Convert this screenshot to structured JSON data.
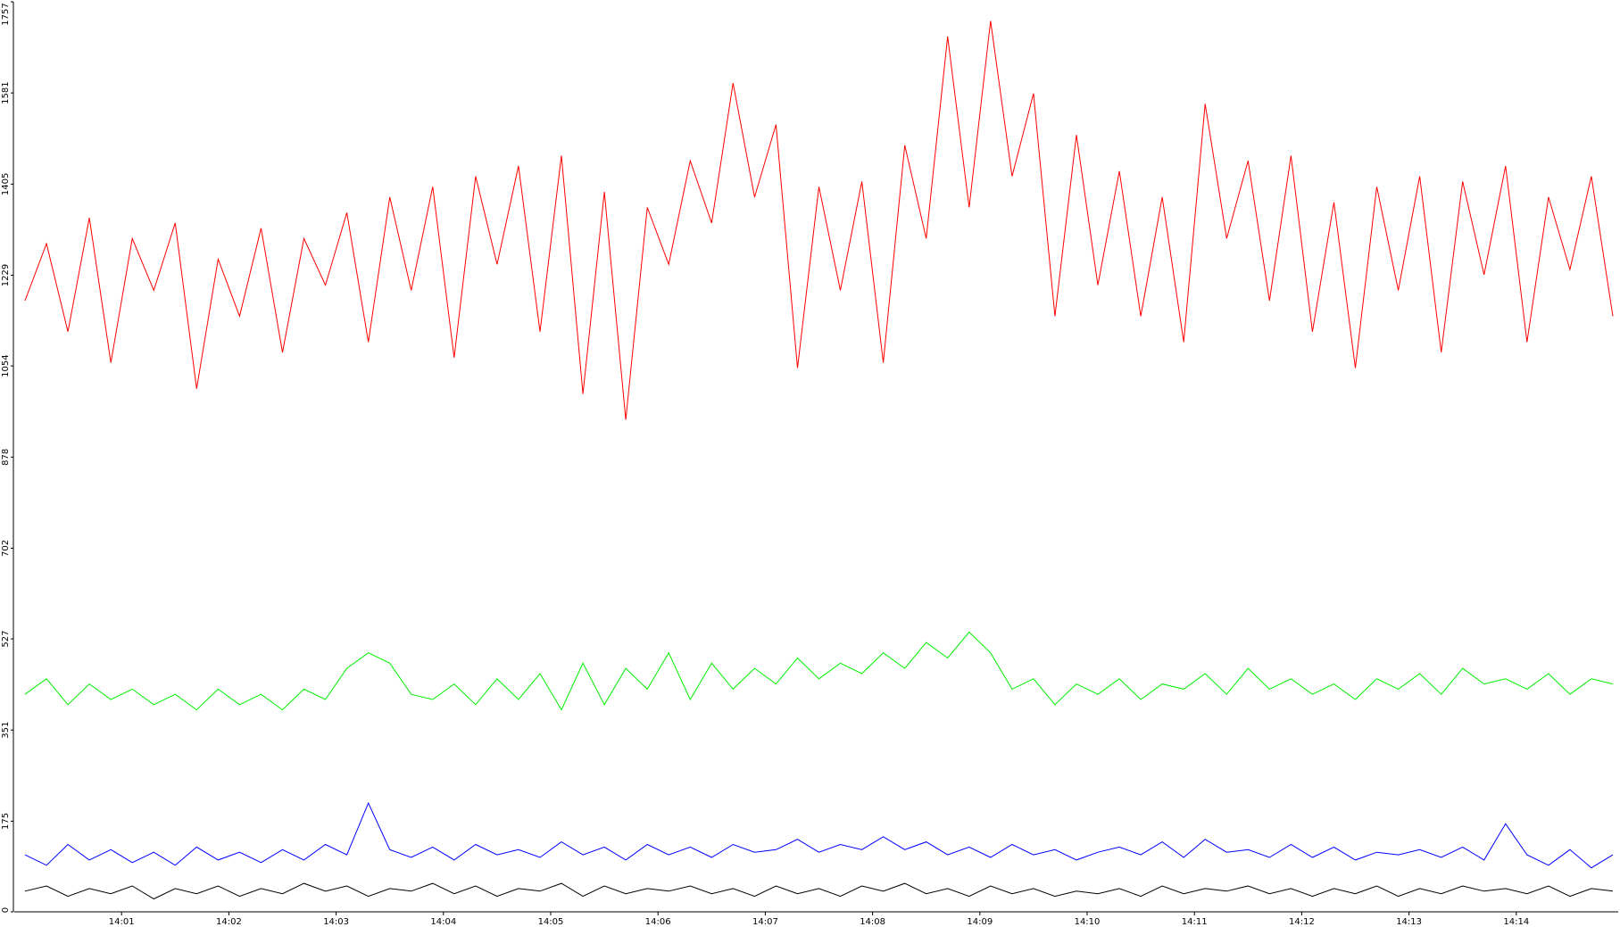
{
  "chart_data": {
    "type": "line",
    "xlim": [
      0,
      14.95
    ],
    "xticks": [
      {
        "value": 1,
        "label": "14:01"
      },
      {
        "value": 2,
        "label": "14:02"
      },
      {
        "value": 3,
        "label": "14:03"
      },
      {
        "value": 4,
        "label": "14:04"
      },
      {
        "value": 5,
        "label": "14:05"
      },
      {
        "value": 6,
        "label": "14:06"
      },
      {
        "value": 7,
        "label": "14:07"
      },
      {
        "value": 8,
        "label": "14:08"
      },
      {
        "value": 9,
        "label": "14:09"
      },
      {
        "value": 10,
        "label": "14:10"
      },
      {
        "value": 11,
        "label": "14:11"
      },
      {
        "value": 12,
        "label": "14:12"
      },
      {
        "value": 13,
        "label": "14:13"
      },
      {
        "value": 14,
        "label": "14:14"
      }
    ],
    "ylim": [
      0,
      1757
    ],
    "yticks": [
      0,
      175,
      351,
      527,
      702,
      878,
      1054,
      1229,
      1405,
      1581,
      1757
    ],
    "x": [
      0.1,
      0.3,
      0.5,
      0.7,
      0.9,
      1.1,
      1.3,
      1.5,
      1.7,
      1.9,
      2.1,
      2.3,
      2.5,
      2.7,
      2.9,
      3.1,
      3.3,
      3.5,
      3.7,
      3.9,
      4.1,
      4.3,
      4.5,
      4.7,
      4.9,
      5.1,
      5.3,
      5.5,
      5.7,
      5.9,
      6.1,
      6.3,
      6.5,
      6.7,
      6.9,
      7.1,
      7.3,
      7.5,
      7.7,
      7.9,
      8.1,
      8.3,
      8.5,
      8.7,
      8.9,
      9.1,
      9.3,
      9.5,
      9.7,
      9.9,
      10.1,
      10.3,
      10.5,
      10.7,
      10.9,
      11.1,
      11.3,
      11.5,
      11.7,
      11.9,
      12.1,
      12.3,
      12.5,
      12.7,
      12.9,
      13.1,
      13.3,
      13.5,
      13.7,
      13.9,
      14.1,
      14.3,
      14.5,
      14.7,
      14.9
    ],
    "series": [
      {
        "color": "#ff0000",
        "values": [
          1180,
          1290,
          1120,
          1340,
          1060,
          1300,
          1200,
          1330,
          1010,
          1260,
          1150,
          1320,
          1080,
          1300,
          1210,
          1350,
          1100,
          1380,
          1200,
          1400,
          1070,
          1420,
          1250,
          1440,
          1120,
          1460,
          1000,
          1390,
          950,
          1360,
          1250,
          1450,
          1330,
          1600,
          1380,
          1520,
          1050,
          1400,
          1200,
          1410,
          1060,
          1480,
          1300,
          1690,
          1360,
          1720,
          1420,
          1580,
          1150,
          1500,
          1210,
          1430,
          1150,
          1380,
          1100,
          1560,
          1300,
          1450,
          1180,
          1460,
          1120,
          1370,
          1050,
          1400,
          1200,
          1420,
          1080,
          1410,
          1230,
          1440,
          1100,
          1380,
          1240,
          1420,
          1150
        ]
      },
      {
        "color": "#00ee00",
        "values": [
          420,
          450,
          400,
          440,
          410,
          430,
          400,
          420,
          390,
          430,
          400,
          420,
          390,
          430,
          410,
          470,
          500,
          480,
          420,
          410,
          440,
          400,
          450,
          410,
          460,
          390,
          480,
          400,
          470,
          430,
          500,
          410,
          480,
          430,
          470,
          440,
          490,
          450,
          480,
          460,
          500,
          470,
          520,
          490,
          540,
          500,
          430,
          450,
          400,
          440,
          420,
          450,
          410,
          440,
          430,
          460,
          420,
          470,
          430,
          450,
          420,
          440,
          410,
          450,
          430,
          460,
          420,
          470,
          440,
          450,
          430,
          460,
          420,
          450,
          440
        ]
      },
      {
        "color": "#0000ff",
        "values": [
          110,
          90,
          130,
          100,
          120,
          95,
          115,
          90,
          125,
          100,
          115,
          95,
          120,
          100,
          130,
          110,
          210,
          120,
          105,
          125,
          100,
          130,
          110,
          120,
          105,
          135,
          110,
          125,
          100,
          130,
          110,
          125,
          105,
          130,
          115,
          120,
          140,
          115,
          130,
          120,
          145,
          120,
          135,
          110,
          125,
          105,
          130,
          110,
          120,
          100,
          115,
          125,
          110,
          135,
          105,
          140,
          115,
          120,
          105,
          130,
          105,
          125,
          100,
          115,
          110,
          120,
          105,
          125,
          100,
          170,
          110,
          90,
          120,
          85,
          110
        ]
      },
      {
        "color": "#000000",
        "values": [
          40,
          50,
          30,
          45,
          35,
          50,
          25,
          45,
          35,
          50,
          30,
          45,
          35,
          55,
          40,
          50,
          30,
          45,
          40,
          55,
          35,
          50,
          30,
          45,
          40,
          55,
          30,
          50,
          35,
          45,
          40,
          50,
          35,
          45,
          30,
          50,
          35,
          45,
          30,
          50,
          40,
          55,
          35,
          45,
          30,
          50,
          35,
          45,
          30,
          40,
          35,
          45,
          30,
          50,
          35,
          45,
          40,
          50,
          35,
          45,
          30,
          45,
          35,
          50,
          30,
          45,
          35,
          50,
          40,
          45,
          35,
          50,
          30,
          45,
          40
        ]
      }
    ]
  }
}
